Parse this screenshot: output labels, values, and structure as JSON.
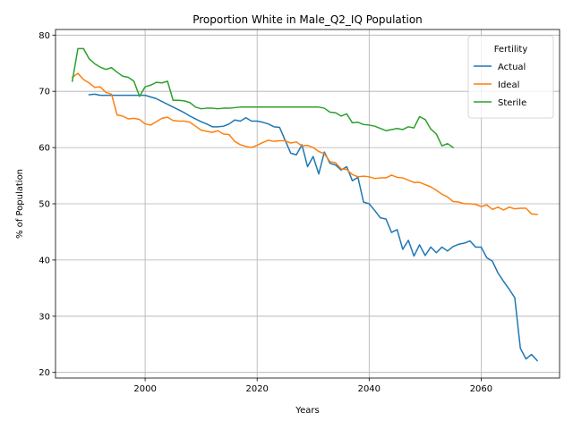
{
  "chart_data": {
    "type": "line",
    "title": "Proportion White in Male_Q2_IQ Population",
    "xlabel": "Years",
    "ylabel": "% of Population",
    "xlim": [
      1984,
      2074
    ],
    "ylim": [
      19,
      81
    ],
    "xticks": [
      2000,
      2020,
      2040,
      2060
    ],
    "yticks": [
      20,
      30,
      40,
      50,
      60,
      70,
      80
    ],
    "grid": true,
    "legend": {
      "title": "Fertility",
      "position": "top-right"
    },
    "series": [
      {
        "name": "Actual",
        "color": "#1f77b4",
        "x": [
          1990,
          1991,
          1992,
          1993,
          1994,
          1995,
          1996,
          1997,
          1998,
          1999,
          2000,
          2001,
          2002,
          2003,
          2004,
          2005,
          2006,
          2007,
          2008,
          2009,
          2010,
          2011,
          2012,
          2013,
          2014,
          2015,
          2016,
          2017,
          2018,
          2019,
          2020,
          2021,
          2022,
          2023,
          2024,
          2025,
          2026,
          2027,
          2028,
          2029,
          2030,
          2031,
          2032,
          2033,
          2034,
          2035,
          2036,
          2037,
          2038,
          2039,
          2040,
          2041,
          2042,
          2043,
          2044,
          2045,
          2046,
          2047,
          2048,
          2049,
          2050,
          2051,
          2052,
          2053,
          2054,
          2055,
          2056,
          2057,
          2058,
          2059,
          2060,
          2061,
          2062,
          2063,
          2064,
          2065,
          2066,
          2067,
          2068,
          2069,
          2070
        ],
        "y": [
          69.4,
          69.5,
          69.3,
          69.3,
          69.3,
          69.3,
          69.3,
          69.3,
          69.3,
          69.3,
          69.3,
          69.0,
          68.7,
          68.2,
          67.7,
          67.2,
          66.7,
          66.2,
          65.6,
          65.1,
          64.6,
          64.2,
          63.7,
          63.7,
          63.8,
          64.2,
          64.9,
          64.7,
          65.3,
          64.7,
          64.7,
          64.5,
          64.2,
          63.7,
          63.6,
          61.3,
          59.0,
          58.7,
          60.5,
          56.6,
          58.4,
          55.3,
          59.2,
          57.2,
          56.9,
          56.0,
          56.6,
          54.1,
          54.7,
          50.3,
          50.0,
          48.8,
          47.5,
          47.3,
          44.9,
          45.4,
          41.9,
          43.5,
          40.7,
          42.7,
          40.8,
          42.3,
          41.3,
          42.3,
          41.6,
          42.4,
          42.8,
          43.0,
          43.4,
          42.3,
          42.3,
          40.4,
          39.8,
          37.7,
          36.2,
          34.8,
          33.3,
          24.3,
          22.4,
          23.2,
          22.1
        ]
      },
      {
        "name": "Ideal",
        "color": "#ff7f0e",
        "x": [
          1987,
          1988,
          1989,
          1990,
          1991,
          1992,
          1993,
          1994,
          1995,
          1996,
          1997,
          1998,
          1999,
          2000,
          2001,
          2002,
          2003,
          2004,
          2005,
          2006,
          2007,
          2008,
          2009,
          2010,
          2011,
          2012,
          2013,
          2014,
          2015,
          2016,
          2017,
          2018,
          2019,
          2020,
          2021,
          2022,
          2023,
          2024,
          2025,
          2026,
          2027,
          2028,
          2029,
          2030,
          2031,
          2032,
          2033,
          2034,
          2035,
          2036,
          2037,
          2038,
          2039,
          2040,
          2041,
          2042,
          2043,
          2044,
          2045,
          2046,
          2047,
          2048,
          2049,
          2050,
          2051,
          2052,
          2053,
          2054,
          2055,
          2056,
          2057,
          2058,
          2059,
          2060,
          2061,
          2062,
          2063,
          2064,
          2065,
          2066,
          2067,
          2068,
          2069,
          2070
        ],
        "y": [
          72.5,
          73.2,
          72.1,
          71.5,
          70.7,
          70.8,
          69.8,
          69.5,
          65.8,
          65.6,
          65.1,
          65.2,
          65.0,
          64.2,
          64.0,
          64.6,
          65.2,
          65.4,
          64.8,
          64.7,
          64.7,
          64.5,
          63.8,
          63.1,
          62.9,
          62.7,
          63.0,
          62.4,
          62.3,
          61.1,
          60.5,
          60.2,
          60.0,
          60.4,
          60.9,
          61.3,
          61.1,
          61.2,
          61.2,
          60.8,
          61.0,
          60.3,
          60.4,
          60.0,
          59.3,
          58.9,
          57.5,
          57.3,
          56.2,
          56.1,
          55.2,
          54.8,
          54.9,
          54.8,
          54.5,
          54.6,
          54.6,
          55.1,
          54.7,
          54.6,
          54.2,
          53.8,
          53.8,
          53.4,
          53.0,
          52.4,
          51.7,
          51.2,
          50.4,
          50.3,
          50.0,
          50.0,
          49.9,
          49.5,
          49.8,
          49.0,
          49.4,
          48.9,
          49.4,
          49.1,
          49.2,
          49.2,
          48.2,
          48.1
        ]
      },
      {
        "name": "Sterile",
        "color": "#2ca02c",
        "x": [
          1987,
          1988,
          1989,
          1990,
          1991,
          1992,
          1993,
          1994,
          1995,
          1996,
          1997,
          1998,
          1999,
          2000,
          2001,
          2002,
          2003,
          2004,
          2005,
          2006,
          2007,
          2008,
          2009,
          2010,
          2011,
          2012,
          2013,
          2014,
          2015,
          2016,
          2017,
          2018,
          2019,
          2020,
          2021,
          2022,
          2023,
          2024,
          2025,
          2026,
          2027,
          2028,
          2029,
          2030,
          2031,
          2032,
          2033,
          2034,
          2035,
          2036,
          2037,
          2038,
          2039,
          2040,
          2041,
          2042,
          2043,
          2044,
          2045,
          2046,
          2047,
          2048,
          2049,
          2050,
          2051,
          2052,
          2053,
          2054,
          2055
        ],
        "y": [
          71.8,
          77.6,
          77.6,
          75.8,
          74.9,
          74.3,
          73.9,
          74.2,
          73.4,
          72.7,
          72.5,
          71.8,
          69.1,
          70.8,
          71.1,
          71.6,
          71.5,
          71.8,
          68.4,
          68.4,
          68.3,
          68.0,
          67.2,
          66.9,
          67.0,
          67.0,
          66.9,
          67.0,
          67.0,
          67.1,
          67.2,
          67.2,
          67.2,
          67.2,
          67.2,
          67.2,
          67.2,
          67.2,
          67.2,
          67.2,
          67.2,
          67.2,
          67.2,
          67.2,
          67.2,
          67.0,
          66.3,
          66.2,
          65.6,
          66.0,
          64.4,
          64.5,
          64.1,
          64.0,
          63.8,
          63.4,
          63.0,
          63.2,
          63.4,
          63.2,
          63.7,
          63.5,
          65.5,
          65.0,
          63.3,
          62.4,
          60.3,
          60.7,
          60.0
        ]
      }
    ]
  }
}
